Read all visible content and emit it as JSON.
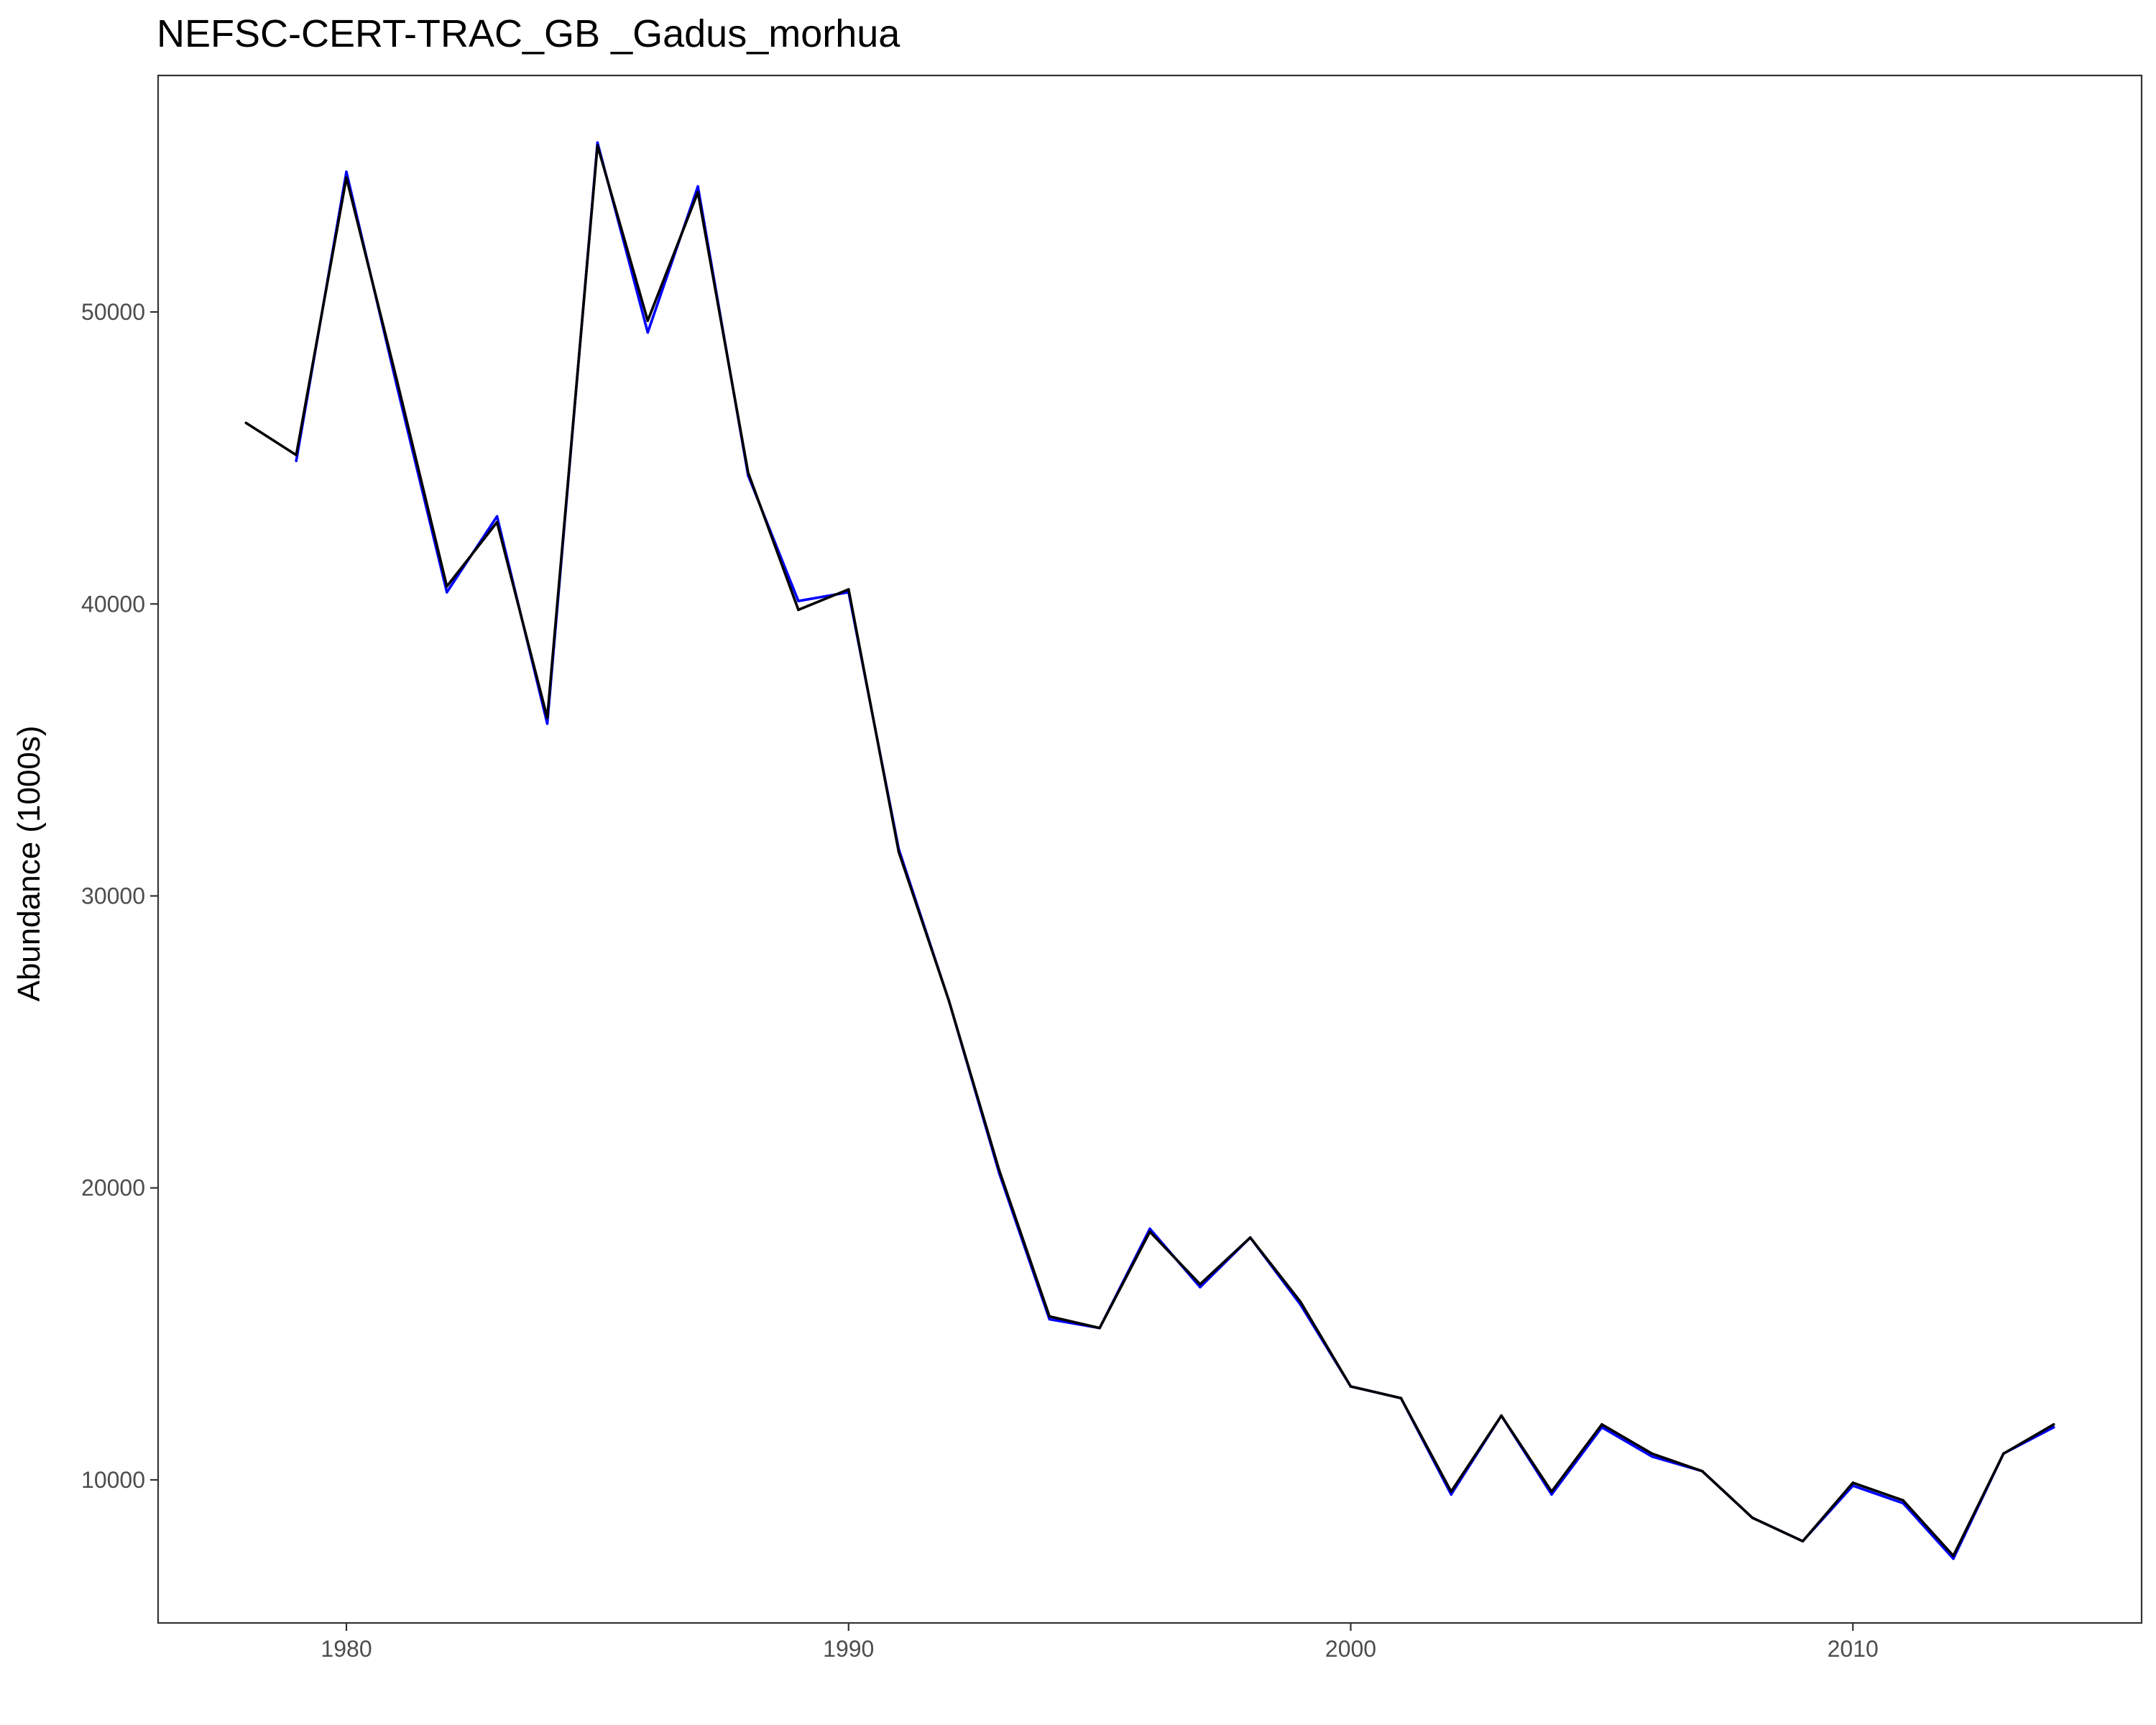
{
  "chart_data": {
    "type": "line",
    "title": "NEFSC-CERT-TRAC_GB _Gadus_morhua",
    "xlabel": "",
    "ylabel": "Abundance (1000s)",
    "xlim": [
      1976.25,
      2015.75
    ],
    "ylim": [
      5100,
      58100
    ],
    "x_ticks": [
      1980,
      1990,
      2000,
      2010
    ],
    "y_ticks": [
      10000,
      20000,
      30000,
      40000,
      50000
    ],
    "grid": false,
    "legend": "none",
    "x": [
      1978,
      1979,
      1980,
      1981,
      1982,
      1983,
      1984,
      1985,
      1986,
      1987,
      1988,
      1989,
      1990,
      1991,
      1992,
      1993,
      1994,
      1995,
      1996,
      1997,
      1998,
      1999,
      2000,
      2001,
      2002,
      2003,
      2004,
      2005,
      2006,
      2007,
      2008,
      2009,
      2010,
      2011,
      2012,
      2013,
      2014
    ],
    "series": [
      {
        "color": "#0000ff",
        "x": [
          1979,
          1980,
          1981,
          1982,
          1983,
          1984,
          1985,
          1986,
          1987,
          1988,
          1989,
          1990,
          1991,
          1992,
          1993,
          1994,
          1995,
          1996,
          1997,
          1998,
          1999,
          2000,
          2001,
          2002,
          2003,
          2004,
          2005,
          2006,
          2007,
          2008,
          2009,
          2010,
          2011,
          2012,
          2013,
          2014
        ],
        "values": [
          44900,
          54800,
          47500,
          40400,
          43000,
          35900,
          55800,
          49300,
          54300,
          44400,
          40100,
          40400,
          31600,
          26400,
          20500,
          15500,
          15200,
          18600,
          16600,
          18300,
          16000,
          13200,
          12800,
          9500,
          12200,
          9500,
          11800,
          10800,
          10300,
          8700,
          7900,
          9800,
          9200,
          7300,
          10900,
          11800
        ]
      },
      {
        "color": "#000000",
        "x": [
          1978,
          1979,
          1980,
          1981,
          1982,
          1983,
          1984,
          1985,
          1986,
          1987,
          1988,
          1989,
          1990,
          1991,
          1992,
          1993,
          1994,
          1995,
          1996,
          1997,
          1998,
          1999,
          2000,
          2001,
          2002,
          2003,
          2004,
          2005,
          2006,
          2007,
          2008,
          2009,
          2010,
          2011,
          2012,
          2013,
          2014
        ],
        "values": [
          46200,
          45100,
          54600,
          47700,
          40600,
          42800,
          36100,
          55700,
          49700,
          54100,
          44500,
          39800,
          40500,
          31500,
          26400,
          20600,
          15600,
          15200,
          18500,
          16700,
          18300,
          16100,
          13200,
          12800,
          9600,
          12200,
          9600,
          11900,
          10900,
          10300,
          8700,
          7900,
          9900,
          9300,
          7400,
          10900,
          11900
        ]
      }
    ]
  }
}
